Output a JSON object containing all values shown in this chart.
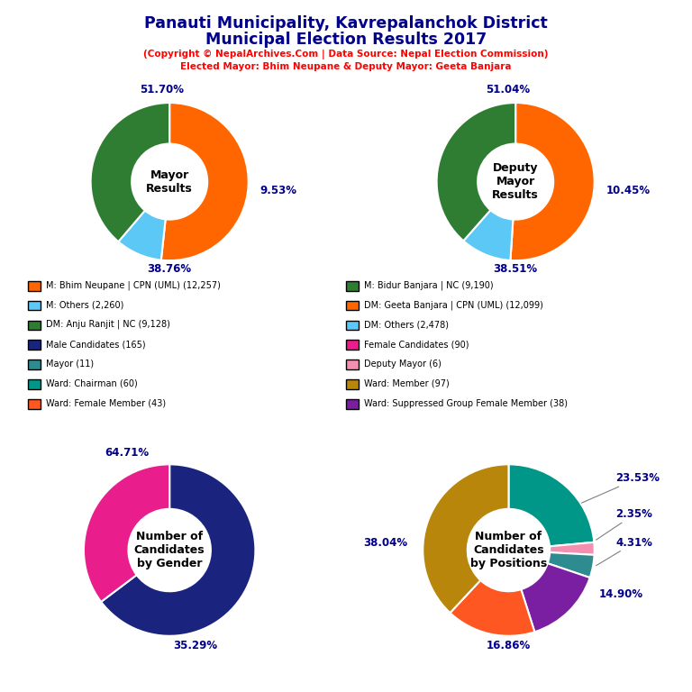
{
  "title_line1": "Panauti Municipality, Kavrepalanchok District",
  "title_line2": "Municipal Election Results 2017",
  "subtitle1": "(Copyright © NepalArchives.Com | Data Source: Nepal Election Commission)",
  "subtitle2": "Elected Mayor: Bhim Neupane & Deputy Mayor: Geeta Banjara",
  "mayor_values": [
    51.7,
    9.53,
    38.76
  ],
  "mayor_colors": [
    "#FF6600",
    "#5BC8F5",
    "#2E7D32"
  ],
  "deputy_values": [
    51.04,
    10.45,
    38.51
  ],
  "deputy_colors": [
    "#FF6600",
    "#5BC8F5",
    "#2E7D32"
  ],
  "gender_values": [
    64.71,
    35.29
  ],
  "gender_colors": [
    "#1A237E",
    "#E91E8C"
  ],
  "position_values": [
    23.53,
    2.35,
    4.31,
    14.9,
    16.86,
    38.04
  ],
  "position_colors": [
    "#009688",
    "#F48FB1",
    "#2E8B8F",
    "#7B1FA2",
    "#FF5722",
    "#B8860B"
  ],
  "legend_items": [
    {
      "label": "M: Bhim Neupane | CPN (UML) (12,257)",
      "color": "#FF6600"
    },
    {
      "label": "M: Others (2,260)",
      "color": "#5BC8F5"
    },
    {
      "label": "DM: Anju Ranjit | NC (9,128)",
      "color": "#2E7D32"
    },
    {
      "label": "Male Candidates (165)",
      "color": "#1A237E"
    },
    {
      "label": "Mayor (11)",
      "color": "#2E8B8F"
    },
    {
      "label": "Ward: Chairman (60)",
      "color": "#009688"
    },
    {
      "label": "Ward: Female Member (43)",
      "color": "#FF5722"
    },
    {
      "label": "M: Bidur Banjara | NC (9,190)",
      "color": "#2E7D32"
    },
    {
      "label": "DM: Geeta Banjara | CPN (UML) (12,099)",
      "color": "#FF6600"
    },
    {
      "label": "DM: Others (2,478)",
      "color": "#5BC8F5"
    },
    {
      "label": "Female Candidates (90)",
      "color": "#E91E8C"
    },
    {
      "label": "Deputy Mayor (6)",
      "color": "#F48FB1"
    },
    {
      "label": "Ward: Member (97)",
      "color": "#B8860B"
    },
    {
      "label": "Ward: Suppressed Group Female Member (38)",
      "color": "#7B1FA2"
    }
  ]
}
